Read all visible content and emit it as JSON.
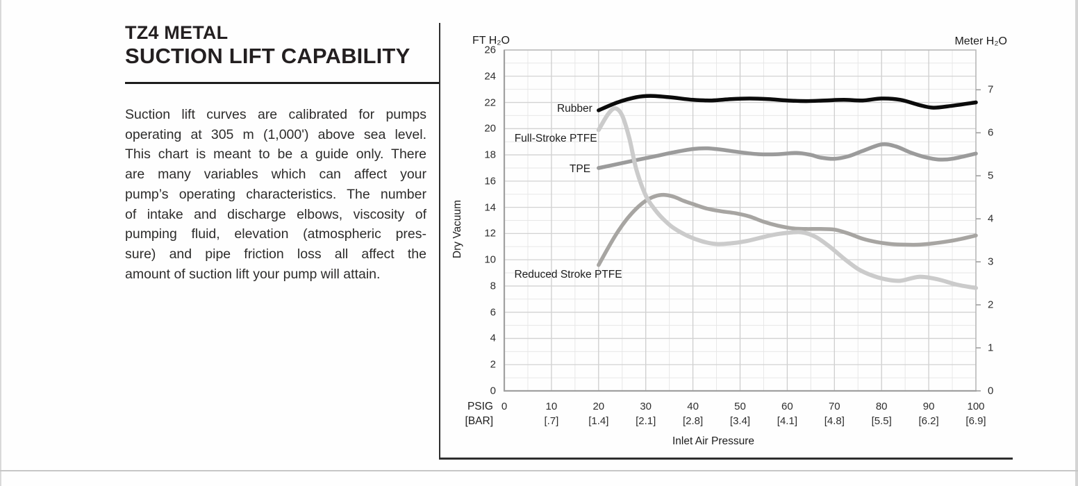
{
  "page": {
    "title_line1": "TZ4 METAL",
    "title_line2": "SUCTION LIFT CAPABILITY",
    "body_lines": [
      "Suction lift curves are calibrated for pumps",
      "operating at 305 m (1,000') above sea level.",
      "This chart is meant to be a guide only. There",
      "are many variables which can affect your",
      "pump’s operating characteristics. The number",
      "of intake and discharge elbows, viscosity of",
      "pumping fluid, elevation (atmospheric pres-",
      "sure) and pipe friction loss all affect the",
      "amount of suction lift your pump will attain."
    ]
  },
  "chart_data": {
    "type": "line",
    "title": "",
    "xlabel": "Inlet Air Pressure",
    "ylabel": "Dry Vacuum",
    "left_axis_unit": "FT H₂O",
    "right_axis_unit": "Meter H₂O",
    "x_unit_primary": "PSIG",
    "x_unit_secondary": "[BAR]",
    "x_range": [
      0,
      100
    ],
    "y_range_ft": [
      0,
      26
    ],
    "y_range_meter": [
      0,
      7
    ],
    "grid": {
      "minor_step_x": 5,
      "major_step_x": 10,
      "minor_step_y": 1,
      "major_step_y": 2,
      "on": true
    },
    "x_ticks_psig": [
      0,
      10,
      20,
      30,
      40,
      50,
      60,
      70,
      80,
      90,
      100
    ],
    "x_ticks_bar": [
      "[.7]",
      "[1.4]",
      "[2.1]",
      "[2.8]",
      "[3.4]",
      "[4.1]",
      "[4.8]",
      "[5.5]",
      "[6.2]",
      "[6.9]"
    ],
    "x_ticks_bar_psig": [
      10,
      20,
      30,
      40,
      50,
      60,
      70,
      80,
      90,
      100
    ],
    "y_ticks_ft": [
      0,
      2,
      4,
      6,
      8,
      10,
      12,
      14,
      16,
      18,
      20,
      22,
      24,
      26
    ],
    "y_ticks_meter": [
      0,
      1,
      2,
      3,
      4,
      5,
      6,
      7
    ],
    "meter_per_ft": 0.3048,
    "series": [
      {
        "name": "TPE",
        "color": "#9b9b9b",
        "width": 5.5,
        "label_at": [
          19.6,
          16.9
        ],
        "points": [
          [
            20,
            17.0
          ],
          [
            24,
            17.3
          ],
          [
            28,
            17.6
          ],
          [
            32,
            17.9
          ],
          [
            36,
            18.2
          ],
          [
            40,
            18.45
          ],
          [
            43,
            18.5
          ],
          [
            46,
            18.4
          ],
          [
            50,
            18.2
          ],
          [
            54,
            18.05
          ],
          [
            58,
            18.05
          ],
          [
            62,
            18.15
          ],
          [
            65,
            18.0
          ],
          [
            67,
            17.8
          ],
          [
            70,
            17.7
          ],
          [
            73,
            17.9
          ],
          [
            76,
            18.3
          ],
          [
            80,
            18.8
          ],
          [
            83,
            18.65
          ],
          [
            86,
            18.2
          ],
          [
            89,
            17.85
          ],
          [
            92,
            17.65
          ],
          [
            95,
            17.7
          ],
          [
            100,
            18.1
          ]
        ]
      },
      {
        "name": "Reduced Stroke PTFE",
        "color": "#a7a5a2",
        "width": 5.5,
        "label_at": [
          26.3,
          8.85
        ],
        "points": [
          [
            20,
            9.6
          ],
          [
            22,
            10.9
          ],
          [
            24,
            12.1
          ],
          [
            26,
            13.1
          ],
          [
            28,
            13.9
          ],
          [
            30,
            14.5
          ],
          [
            32,
            14.85
          ],
          [
            34,
            14.95
          ],
          [
            36,
            14.8
          ],
          [
            38,
            14.5
          ],
          [
            40,
            14.25
          ],
          [
            43,
            13.9
          ],
          [
            46,
            13.7
          ],
          [
            49,
            13.55
          ],
          [
            52,
            13.3
          ],
          [
            55,
            12.9
          ],
          [
            58,
            12.6
          ],
          [
            61,
            12.4
          ],
          [
            64,
            12.35
          ],
          [
            67,
            12.35
          ],
          [
            70,
            12.3
          ],
          [
            73,
            12.0
          ],
          [
            76,
            11.6
          ],
          [
            79,
            11.35
          ],
          [
            82,
            11.2
          ],
          [
            85,
            11.15
          ],
          [
            88,
            11.15
          ],
          [
            91,
            11.25
          ],
          [
            94,
            11.4
          ],
          [
            97,
            11.6
          ],
          [
            100,
            11.85
          ]
        ]
      },
      {
        "name": "Full-Stroke PTFE",
        "color": "#cbcbcb",
        "width": 6,
        "label_at": [
          21.0,
          19.2
        ],
        "points": [
          [
            20,
            19.9
          ],
          [
            22,
            21.1
          ],
          [
            23.5,
            21.55
          ],
          [
            25,
            21.0
          ],
          [
            26.5,
            19.3
          ],
          [
            28,
            16.9
          ],
          [
            30,
            14.9
          ],
          [
            32,
            13.8
          ],
          [
            34,
            13.0
          ],
          [
            36,
            12.4
          ],
          [
            39,
            11.8
          ],
          [
            42,
            11.4
          ],
          [
            45,
            11.2
          ],
          [
            48,
            11.25
          ],
          [
            51,
            11.4
          ],
          [
            54,
            11.65
          ],
          [
            57,
            11.9
          ],
          [
            60,
            12.05
          ],
          [
            63,
            12.1
          ],
          [
            66,
            11.75
          ],
          [
            69,
            11.0
          ],
          [
            72,
            10.1
          ],
          [
            75,
            9.3
          ],
          [
            78,
            8.8
          ],
          [
            81,
            8.5
          ],
          [
            84,
            8.4
          ],
          [
            88,
            8.7
          ],
          [
            92,
            8.5
          ],
          [
            96,
            8.1
          ],
          [
            100,
            7.85
          ]
        ]
      },
      {
        "name": "Rubber",
        "color": "#0b0b0b",
        "width": 5.5,
        "label_at": [
          20.0,
          21.5
        ],
        "points": [
          [
            20,
            21.4
          ],
          [
            24,
            22.0
          ],
          [
            28,
            22.4
          ],
          [
            31,
            22.5
          ],
          [
            35,
            22.4
          ],
          [
            40,
            22.2
          ],
          [
            44,
            22.15
          ],
          [
            48,
            22.25
          ],
          [
            52,
            22.3
          ],
          [
            56,
            22.25
          ],
          [
            60,
            22.15
          ],
          [
            64,
            22.1
          ],
          [
            68,
            22.15
          ],
          [
            72,
            22.2
          ],
          [
            76,
            22.15
          ],
          [
            80,
            22.3
          ],
          [
            84,
            22.2
          ],
          [
            88,
            21.8
          ],
          [
            91,
            21.6
          ],
          [
            95,
            21.75
          ],
          [
            100,
            22.0
          ]
        ]
      }
    ]
  }
}
